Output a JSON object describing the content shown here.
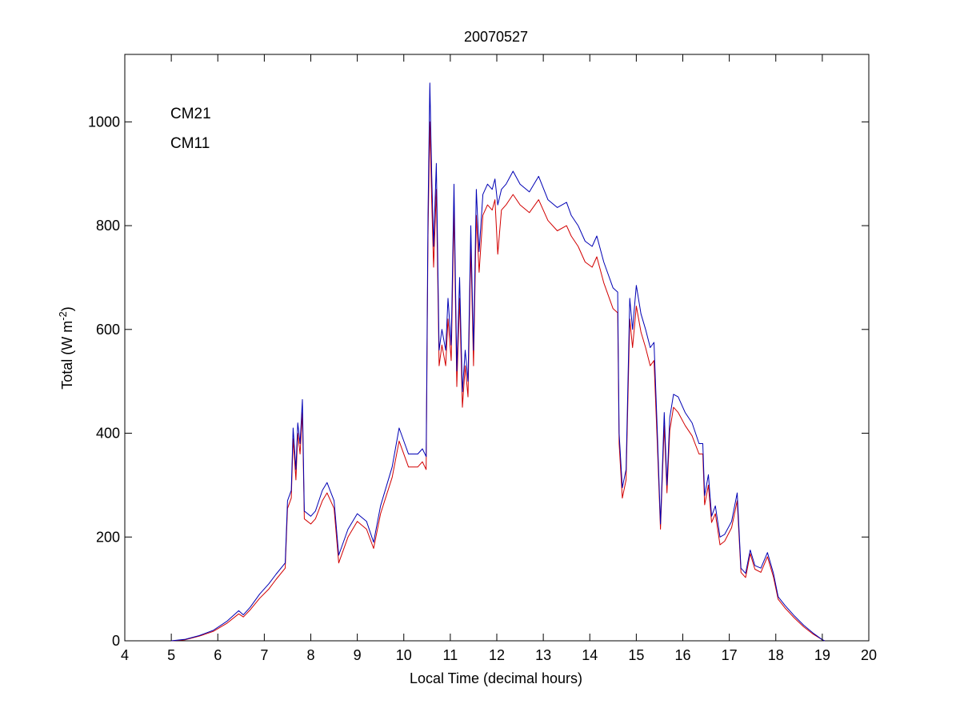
{
  "chart_data": {
    "type": "line",
    "title": "20070527",
    "xlabel": "Local Time (decimal hours)",
    "ylabel": {
      "main": "Total (W m",
      "superscript": "-2",
      "close": ")"
    },
    "xlim": [
      4,
      20
    ],
    "ylim": [
      0,
      1130
    ],
    "xticks": [
      4,
      5,
      6,
      7,
      8,
      9,
      10,
      11,
      12,
      13,
      14,
      15,
      16,
      17,
      18,
      19,
      20
    ],
    "yticks": [
      0,
      200,
      400,
      600,
      800,
      1000
    ],
    "grid": false,
    "legend_placement": "top-left",
    "series": [
      {
        "name": "CM21",
        "color": "#0000b4",
        "points": [
          [
            5.0,
            0
          ],
          [
            5.3,
            3
          ],
          [
            5.6,
            10
          ],
          [
            5.9,
            20
          ],
          [
            6.2,
            38
          ],
          [
            6.45,
            58
          ],
          [
            6.55,
            50
          ],
          [
            6.7,
            65
          ],
          [
            6.9,
            90
          ],
          [
            7.1,
            110
          ],
          [
            7.25,
            128
          ],
          [
            7.45,
            150
          ],
          [
            7.5,
            270
          ],
          [
            7.58,
            290
          ],
          [
            7.62,
            410
          ],
          [
            7.68,
            330
          ],
          [
            7.72,
            420
          ],
          [
            7.77,
            380
          ],
          [
            7.82,
            465
          ],
          [
            7.86,
            250
          ],
          [
            8.0,
            240
          ],
          [
            8.1,
            250
          ],
          [
            8.25,
            290
          ],
          [
            8.35,
            305
          ],
          [
            8.5,
            270
          ],
          [
            8.6,
            165
          ],
          [
            8.8,
            215
          ],
          [
            9.0,
            245
          ],
          [
            9.2,
            230
          ],
          [
            9.35,
            190
          ],
          [
            9.5,
            260
          ],
          [
            9.75,
            335
          ],
          [
            9.9,
            410
          ],
          [
            10.1,
            360
          ],
          [
            10.3,
            360
          ],
          [
            10.4,
            370
          ],
          [
            10.48,
            355
          ],
          [
            10.52,
            820
          ],
          [
            10.56,
            1075
          ],
          [
            10.6,
            900
          ],
          [
            10.64,
            760
          ],
          [
            10.7,
            920
          ],
          [
            10.76,
            560
          ],
          [
            10.82,
            600
          ],
          [
            10.9,
            560
          ],
          [
            10.95,
            660
          ],
          [
            11.02,
            570
          ],
          [
            11.08,
            880
          ],
          [
            11.14,
            520
          ],
          [
            11.2,
            700
          ],
          [
            11.26,
            480
          ],
          [
            11.32,
            560
          ],
          [
            11.38,
            500
          ],
          [
            11.44,
            800
          ],
          [
            11.5,
            560
          ],
          [
            11.56,
            870
          ],
          [
            11.62,
            750
          ],
          [
            11.7,
            860
          ],
          [
            11.8,
            880
          ],
          [
            11.9,
            870
          ],
          [
            11.96,
            890
          ],
          [
            12.02,
            840
          ],
          [
            12.1,
            870
          ],
          [
            12.2,
            880
          ],
          [
            12.35,
            905
          ],
          [
            12.5,
            880
          ],
          [
            12.7,
            865
          ],
          [
            12.9,
            895
          ],
          [
            13.1,
            850
          ],
          [
            13.3,
            835
          ],
          [
            13.5,
            845
          ],
          [
            13.6,
            820
          ],
          [
            13.75,
            800
          ],
          [
            13.9,
            770
          ],
          [
            14.05,
            760
          ],
          [
            14.15,
            780
          ],
          [
            14.3,
            730
          ],
          [
            14.5,
            680
          ],
          [
            14.6,
            672
          ],
          [
            14.63,
            400
          ],
          [
            14.7,
            295
          ],
          [
            14.78,
            330
          ],
          [
            14.86,
            660
          ],
          [
            14.92,
            600
          ],
          [
            15.0,
            685
          ],
          [
            15.1,
            630
          ],
          [
            15.2,
            600
          ],
          [
            15.3,
            565
          ],
          [
            15.38,
            575
          ],
          [
            15.45,
            410
          ],
          [
            15.52,
            225
          ],
          [
            15.6,
            440
          ],
          [
            15.66,
            300
          ],
          [
            15.72,
            430
          ],
          [
            15.8,
            475
          ],
          [
            15.9,
            470
          ],
          [
            16.05,
            440
          ],
          [
            16.2,
            420
          ],
          [
            16.35,
            380
          ],
          [
            16.43,
            380
          ],
          [
            16.47,
            280
          ],
          [
            16.55,
            320
          ],
          [
            16.62,
            240
          ],
          [
            16.7,
            260
          ],
          [
            16.8,
            200
          ],
          [
            16.9,
            205
          ],
          [
            17.05,
            230
          ],
          [
            17.17,
            285
          ],
          [
            17.25,
            140
          ],
          [
            17.35,
            130
          ],
          [
            17.45,
            175
          ],
          [
            17.55,
            145
          ],
          [
            17.68,
            140
          ],
          [
            17.82,
            170
          ],
          [
            17.95,
            130
          ],
          [
            18.05,
            85
          ],
          [
            18.2,
            68
          ],
          [
            18.4,
            48
          ],
          [
            18.6,
            30
          ],
          [
            18.8,
            15
          ],
          [
            19.0,
            2
          ],
          [
            19.05,
            0
          ]
        ]
      },
      {
        "name": "CM11",
        "color": "#d20000",
        "points": [
          [
            5.0,
            0
          ],
          [
            5.3,
            2
          ],
          [
            5.6,
            9
          ],
          [
            5.9,
            18
          ],
          [
            6.2,
            34
          ],
          [
            6.45,
            52
          ],
          [
            6.55,
            46
          ],
          [
            6.7,
            60
          ],
          [
            6.9,
            82
          ],
          [
            7.1,
            100
          ],
          [
            7.25,
            118
          ],
          [
            7.45,
            140
          ],
          [
            7.5,
            255
          ],
          [
            7.58,
            275
          ],
          [
            7.62,
            390
          ],
          [
            7.68,
            310
          ],
          [
            7.72,
            400
          ],
          [
            7.77,
            360
          ],
          [
            7.82,
            440
          ],
          [
            7.86,
            235
          ],
          [
            8.0,
            225
          ],
          [
            8.1,
            235
          ],
          [
            8.25,
            270
          ],
          [
            8.35,
            285
          ],
          [
            8.5,
            255
          ],
          [
            8.6,
            150
          ],
          [
            8.8,
            200
          ],
          [
            9.0,
            230
          ],
          [
            9.2,
            215
          ],
          [
            9.35,
            178
          ],
          [
            9.5,
            245
          ],
          [
            9.75,
            315
          ],
          [
            9.9,
            385
          ],
          [
            10.1,
            335
          ],
          [
            10.3,
            335
          ],
          [
            10.4,
            345
          ],
          [
            10.48,
            330
          ],
          [
            10.52,
            780
          ],
          [
            10.56,
            1000
          ],
          [
            10.6,
            850
          ],
          [
            10.64,
            720
          ],
          [
            10.7,
            870
          ],
          [
            10.76,
            530
          ],
          [
            10.82,
            570
          ],
          [
            10.9,
            530
          ],
          [
            10.95,
            620
          ],
          [
            11.02,
            540
          ],
          [
            11.08,
            830
          ],
          [
            11.14,
            490
          ],
          [
            11.2,
            660
          ],
          [
            11.26,
            450
          ],
          [
            11.32,
            530
          ],
          [
            11.38,
            470
          ],
          [
            11.44,
            760
          ],
          [
            11.5,
            530
          ],
          [
            11.56,
            820
          ],
          [
            11.62,
            710
          ],
          [
            11.7,
            820
          ],
          [
            11.8,
            840
          ],
          [
            11.9,
            830
          ],
          [
            11.96,
            850
          ],
          [
            12.02,
            745
          ],
          [
            12.1,
            830
          ],
          [
            12.2,
            840
          ],
          [
            12.35,
            860
          ],
          [
            12.5,
            840
          ],
          [
            12.7,
            825
          ],
          [
            12.9,
            850
          ],
          [
            13.1,
            810
          ],
          [
            13.3,
            790
          ],
          [
            13.5,
            800
          ],
          [
            13.6,
            780
          ],
          [
            13.75,
            760
          ],
          [
            13.9,
            730
          ],
          [
            14.05,
            720
          ],
          [
            14.15,
            740
          ],
          [
            14.3,
            690
          ],
          [
            14.5,
            640
          ],
          [
            14.6,
            632
          ],
          [
            14.63,
            380
          ],
          [
            14.7,
            275
          ],
          [
            14.78,
            310
          ],
          [
            14.86,
            620
          ],
          [
            14.92,
            565
          ],
          [
            15.0,
            645
          ],
          [
            15.1,
            595
          ],
          [
            15.2,
            565
          ],
          [
            15.3,
            530
          ],
          [
            15.38,
            540
          ],
          [
            15.45,
            385
          ],
          [
            15.52,
            215
          ],
          [
            15.6,
            415
          ],
          [
            15.66,
            285
          ],
          [
            15.72,
            405
          ],
          [
            15.8,
            450
          ],
          [
            15.9,
            440
          ],
          [
            16.05,
            415
          ],
          [
            16.2,
            395
          ],
          [
            16.35,
            360
          ],
          [
            16.43,
            360
          ],
          [
            16.47,
            262
          ],
          [
            16.55,
            300
          ],
          [
            16.62,
            228
          ],
          [
            16.7,
            245
          ],
          [
            16.8,
            185
          ],
          [
            16.9,
            192
          ],
          [
            17.05,
            218
          ],
          [
            17.17,
            270
          ],
          [
            17.25,
            132
          ],
          [
            17.35,
            122
          ],
          [
            17.45,
            168
          ],
          [
            17.55,
            138
          ],
          [
            17.68,
            132
          ],
          [
            17.82,
            162
          ],
          [
            17.95,
            123
          ],
          [
            18.05,
            80
          ],
          [
            18.2,
            63
          ],
          [
            18.4,
            44
          ],
          [
            18.6,
            27
          ],
          [
            18.8,
            13
          ],
          [
            19.0,
            2
          ],
          [
            19.05,
            0
          ]
        ]
      }
    ]
  }
}
